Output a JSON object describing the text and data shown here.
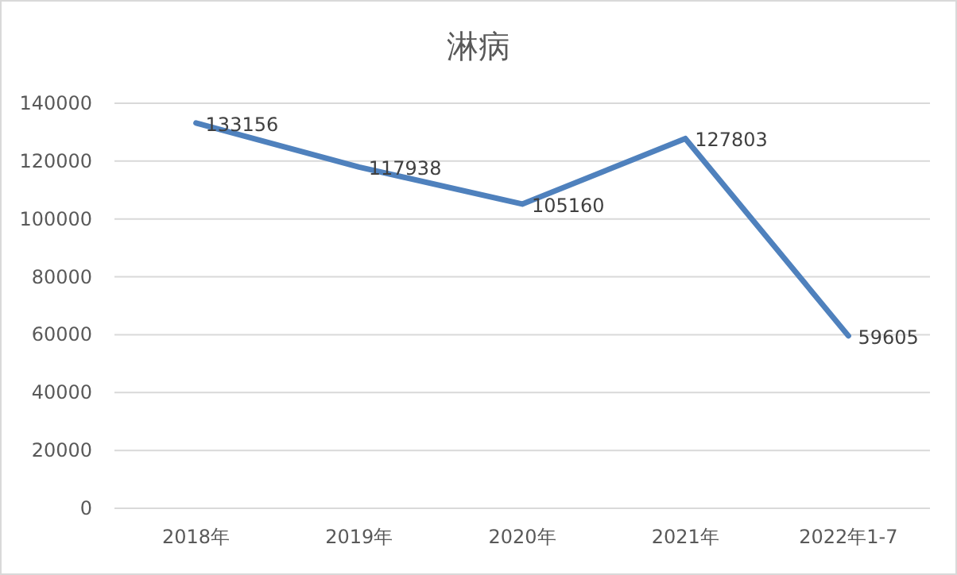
{
  "chart_data": {
    "type": "line",
    "title": "淋病",
    "categories": [
      "2018年",
      "2019年",
      "2020年",
      "2021年",
      "2022年1-7"
    ],
    "values": [
      133156,
      117938,
      105160,
      127803,
      59605
    ],
    "color": "#4f81bd",
    "ylim": [
      0,
      140000
    ],
    "yticks": [
      0,
      20000,
      40000,
      60000,
      80000,
      100000,
      120000,
      140000
    ],
    "grid": "y",
    "data_labels": true,
    "marker": "none",
    "line_style": "solid"
  }
}
